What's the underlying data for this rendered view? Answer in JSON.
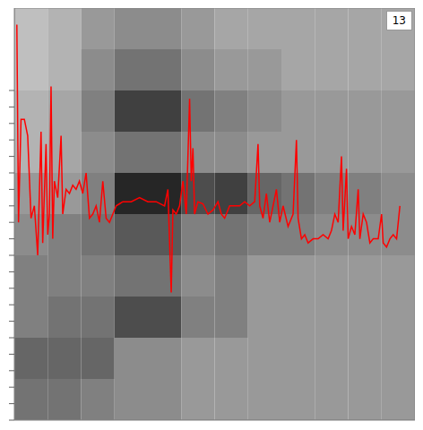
{
  "chart_data": {
    "type": "line",
    "annotation": "13",
    "tick_labels": false,
    "grid": false,
    "xlim": [
      0,
      480
    ],
    "ylim": [
      0,
      100
    ],
    "yticks": [
      0,
      4,
      8,
      12,
      16,
      20,
      24,
      28,
      32,
      36,
      40,
      44,
      48,
      52,
      56,
      60,
      64,
      68,
      72,
      76,
      80
    ],
    "color": "#ff0000",
    "x": [
      3,
      5,
      8,
      12,
      16,
      20,
      24,
      28,
      32,
      34,
      38,
      40,
      42,
      44,
      46,
      48,
      52,
      56,
      58,
      62,
      66,
      70,
      74,
      78,
      82,
      86,
      90,
      94,
      98,
      102,
      106,
      110,
      114,
      118,
      122,
      126,
      130,
      140,
      150,
      160,
      170,
      180,
      184,
      188,
      190,
      194,
      198,
      202,
      206,
      210,
      212,
      214,
      216,
      220,
      226,
      232,
      238,
      244,
      248,
      252,
      258,
      264,
      270,
      276,
      282,
      288,
      292,
      294,
      298,
      302,
      306,
      310,
      314,
      318,
      322,
      328,
      334,
      338,
      340,
      344,
      348,
      352,
      358,
      364,
      370,
      376,
      380,
      384,
      388,
      392,
      394,
      398,
      400,
      404,
      408,
      412,
      414,
      418,
      422,
      426,
      430,
      436,
      440,
      442,
      446,
      450,
      454,
      458,
      462
    ],
    "values": [
      96,
      48,
      73,
      73,
      69,
      49,
      52,
      40,
      70,
      43,
      67,
      45,
      50,
      81,
      44,
      58,
      54,
      69,
      50,
      56,
      55,
      57,
      56,
      58,
      55,
      60,
      49,
      50,
      52,
      48,
      58,
      49,
      48,
      50,
      52,
      52.5,
      53,
      53,
      54,
      53,
      53,
      52,
      56,
      31,
      51,
      50,
      52,
      58,
      50,
      78,
      58,
      66,
      50,
      53,
      52.5,
      50,
      51,
      53,
      50,
      49,
      52,
      52,
      52,
      53,
      52,
      53,
      67,
      52,
      49,
      55,
      48,
      52,
      56,
      48,
      52,
      47,
      50,
      68,
      49,
      44,
      45,
      43,
      44,
      44,
      45,
      44,
      46,
      50,
      48,
      64,
      46,
      61,
      44,
      47,
      45,
      56,
      44,
      50,
      48,
      43,
      44,
      44,
      50,
      43,
      42,
      44,
      45,
      44,
      52
    ],
    "heatmap": {
      "x_edges": [
        0,
        40,
        80,
        120,
        160,
        200,
        240,
        280,
        320,
        360,
        400,
        440,
        480
      ],
      "y_edges": [
        0,
        10,
        20,
        30,
        40,
        50,
        60,
        70,
        80,
        90,
        100
      ],
      "zlim": [
        0,
        1
      ],
      "cells": [
        [
          0.45,
          0.45,
          0.5,
          0.55,
          0.55,
          0.6,
          0.6,
          0.6,
          0.6,
          0.6,
          0.6,
          0.6
        ],
        [
          0.4,
          0.4,
          0.4,
          0.55,
          0.55,
          0.6,
          0.6,
          0.6,
          0.6,
          0.6,
          0.6,
          0.6
        ],
        [
          0.5,
          0.45,
          0.45,
          0.3,
          0.3,
          0.5,
          0.5,
          0.6,
          0.6,
          0.6,
          0.6,
          0.6
        ],
        [
          0.5,
          0.5,
          0.5,
          0.45,
          0.45,
          0.55,
          0.5,
          0.6,
          0.6,
          0.6,
          0.6,
          0.6
        ],
        [
          0.55,
          0.5,
          0.45,
          0.35,
          0.35,
          0.5,
          0.45,
          0.5,
          0.5,
          0.55,
          0.55,
          0.55
        ],
        [
          0.6,
          0.6,
          0.5,
          0.15,
          0.15,
          0.3,
          0.25,
          0.4,
          0.45,
          0.5,
          0.5,
          0.55
        ],
        [
          0.7,
          0.65,
          0.55,
          0.45,
          0.45,
          0.55,
          0.55,
          0.6,
          0.6,
          0.6,
          0.6,
          0.6
        ],
        [
          0.7,
          0.65,
          0.5,
          0.25,
          0.25,
          0.45,
          0.5,
          0.55,
          0.6,
          0.6,
          0.6,
          0.6
        ],
        [
          0.75,
          0.7,
          0.55,
          0.45,
          0.45,
          0.55,
          0.6,
          0.6,
          0.65,
          0.65,
          0.65,
          0.65
        ],
        [
          0.75,
          0.7,
          0.6,
          0.55,
          0.55,
          0.6,
          0.65,
          0.65,
          0.65,
          0.65,
          0.65,
          0.65
        ]
      ]
    }
  }
}
